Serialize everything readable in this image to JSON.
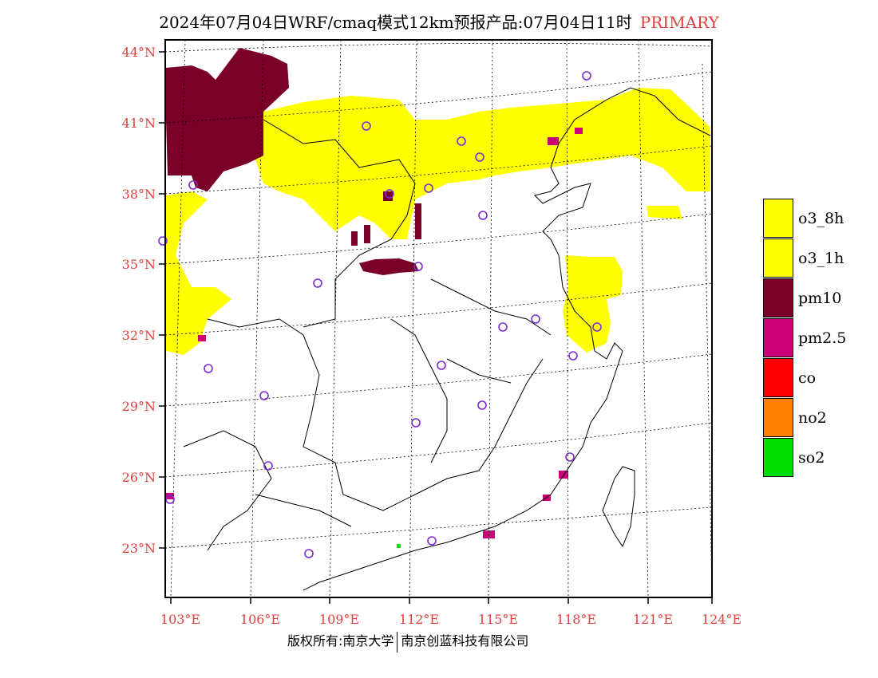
{
  "title": {
    "main": "2024年07月04日WRF/cmaq模式12km预报产品:07月04日11时",
    "tag": "PRIMARY"
  },
  "axes": {
    "lat_labels": [
      "44°N",
      "41°N",
      "38°N",
      "35°N",
      "32°N",
      "29°N",
      "26°N",
      "23°N"
    ],
    "lon_labels": [
      "103°E",
      "106°E",
      "109°E",
      "112°E",
      "115°E",
      "118°E",
      "121°E",
      "124°E"
    ]
  },
  "legend": [
    {
      "label": "o3_8h",
      "color": "#ffff00"
    },
    {
      "label": "o3_1h",
      "color": "#ffff00"
    },
    {
      "label": "pm10",
      "color": "#7b0028"
    },
    {
      "label": "pm2.5",
      "color": "#cc0077"
    },
    {
      "label": "co",
      "color": "#ff0000"
    },
    {
      "label": "no2",
      "color": "#ff7f00"
    },
    {
      "label": "so2",
      "color": "#00dd00"
    }
  ],
  "footer": {
    "left": "版权所有:南京大学",
    "right": "南京创蓝科技有限公司"
  },
  "colors": {
    "accent": "#e0403c",
    "station_marker": "#7b2bd6"
  }
}
